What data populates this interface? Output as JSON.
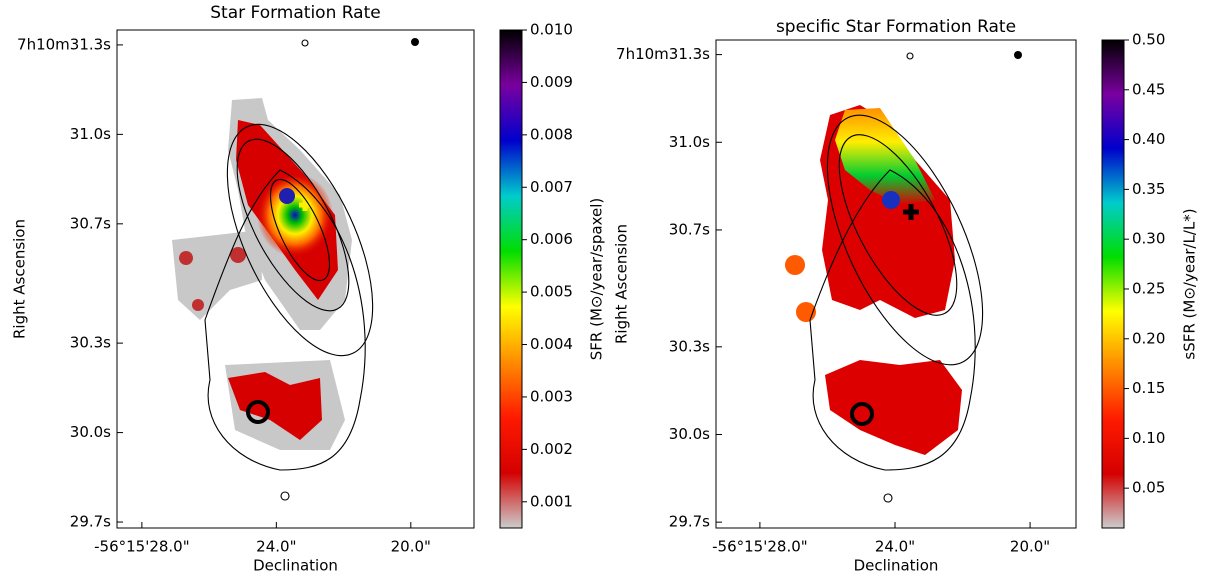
{
  "chart_data": [
    {
      "type": "image",
      "title": "Star Formation Rate",
      "xlabel": "Declination",
      "ylabel": "Right Ascension",
      "xlim": [
        28.74,
        18.12
      ],
      "xticks": [
        {
          "value": 28.0,
          "label": "-56°15'28.0\""
        },
        {
          "value": 24.0,
          "label": "24.0\""
        },
        {
          "value": 20.0,
          "label": "20.0\""
        }
      ],
      "ylim": [
        29.68,
        31.35
      ],
      "yticks": [
        {
          "value": 29.7,
          "label": "29.7s"
        },
        {
          "value": 30.0,
          "label": "30.0s"
        },
        {
          "value": 30.3,
          "label": "30.3s"
        },
        {
          "value": 30.7,
          "label": "30.7s"
        },
        {
          "value": 31.0,
          "label": "31.0s"
        },
        {
          "value": 31.3,
          "label": "7h10m31.3s"
        }
      ],
      "colorbar_label": "SFR (M⊙/year/spaxel)",
      "clim": [
        0.0005,
        0.01
      ],
      "cticks": [
        0.001,
        0.002,
        0.003,
        0.004,
        0.005,
        0.006,
        0.007,
        0.008,
        0.009,
        {
          "value": 0.01,
          "label": "0.010"
        }
      ],
      "colormap": [
        "#cccccc",
        "#d40000",
        "#ff1a00",
        "#ff8c00",
        "#ffff00",
        "#00dd00",
        "#00cccc",
        "#0000cc",
        "#7a00a0",
        "#000000"
      ]
    },
    {
      "type": "image",
      "title": "specific Star Formation Rate",
      "xlabel": "Declination",
      "ylabel": "Right Ascension",
      "xlim": [
        29.3,
        18.64
      ],
      "xticks": [
        {
          "value": 28.0,
          "label": "-56°15'28.0\""
        },
        {
          "value": 24.0,
          "label": "24.0\""
        },
        {
          "value": 20.0,
          "label": "20.0\""
        }
      ],
      "ylim": [
        29.68,
        31.35
      ],
      "yticks": [
        {
          "value": 29.7,
          "label": "29.7s"
        },
        {
          "value": 30.0,
          "label": "30.0s"
        },
        {
          "value": 30.3,
          "label": "30.3s"
        },
        {
          "value": 30.7,
          "label": "30.7s"
        },
        {
          "value": 31.0,
          "label": "31.0s"
        },
        {
          "value": 31.3,
          "label": "7h10m31.3s"
        }
      ],
      "colorbar_label": "sSFR (M⊙/year/L/L*)",
      "clim": [
        0.01,
        0.5
      ],
      "cticks": [
        0.05,
        {
          "value": 0.1,
          "label": "0.10"
        },
        0.15,
        {
          "value": 0.2,
          "label": "0.20"
        },
        0.25,
        {
          "value": 0.3,
          "label": "0.30"
        },
        0.35,
        {
          "value": 0.4,
          "label": "0.40"
        },
        0.45,
        {
          "value": 0.5,
          "label": "0.50"
        }
      ],
      "colormap": [
        "#cccccc",
        "#d40000",
        "#ff1a00",
        "#ff8c00",
        "#ffff00",
        "#00dd00",
        "#00cccc",
        "#0000cc",
        "#7a00a0",
        "#000000"
      ]
    }
  ]
}
